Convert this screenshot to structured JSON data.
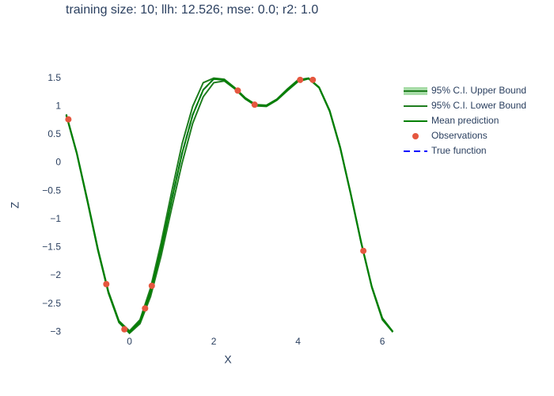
{
  "chart_data": {
    "type": "line",
    "title": "training size: 10; llh: 12.526; mse: 0.0; r2: 1.0",
    "x_label": "X",
    "y_label": "Z",
    "xlim": [
      -1.57,
      6.28
    ],
    "ylim": [
      -3.08,
      1.58
    ],
    "xticks": [
      0,
      2,
      4,
      6
    ],
    "yticks": [
      1.5,
      1,
      0.5,
      0,
      {
        "value": -0.5,
        "label": "−0.5"
      },
      {
        "value": -1,
        "label": "−1"
      },
      {
        "value": -1.5,
        "label": "−1.5"
      },
      {
        "value": -2,
        "label": "−2"
      },
      {
        "value": -2.5,
        "label": "−2.5"
      },
      {
        "value": -3,
        "label": "−3"
      }
    ],
    "x": [
      -1.5,
      -1.25,
      -1.0,
      -0.75,
      -0.5,
      -0.25,
      0,
      0.25,
      0.5,
      0.75,
      1.0,
      1.25,
      1.5,
      1.75,
      2.0,
      2.25,
      2.5,
      2.75,
      3.0,
      3.25,
      3.5,
      3.75,
      4.0,
      4.25,
      4.5,
      4.75,
      5.0,
      5.25,
      5.5,
      5.75,
      6.0,
      6.25
    ],
    "series": [
      {
        "name": "95% C.I. Upper Bound",
        "color": "#1e7d1e",
        "kind": "line",
        "values": [
          0.86,
          0.18,
          -0.65,
          -1.52,
          -2.28,
          -2.8,
          -2.98,
          -2.78,
          -2.22,
          -1.42,
          -0.52,
          0.34,
          1.0,
          1.42,
          1.5,
          1.48,
          1.33,
          1.15,
          1.03,
          1.02,
          1.13,
          1.31,
          1.47,
          1.5,
          1.34,
          0.93,
          0.28,
          -0.54,
          -1.41,
          -2.19,
          -2.75,
          -2.99
        ]
      },
      {
        "name": "95% C.I. Lower Bound",
        "color": "#1e7d1e",
        "kind": "line",
        "values": [
          0.84,
          0.16,
          -0.68,
          -1.55,
          -2.31,
          -2.83,
          -3.02,
          -2.85,
          -2.37,
          -1.65,
          -0.81,
          0.0,
          0.7,
          1.17,
          1.42,
          1.45,
          1.31,
          1.13,
          1.01,
          1.0,
          1.11,
          1.28,
          1.44,
          1.49,
          1.33,
          0.91,
          0.26,
          -0.56,
          -1.43,
          -2.21,
          -2.78,
          -3.0
        ]
      },
      {
        "name": "Mean prediction",
        "color": "#008000",
        "kind": "line",
        "values": [
          0.849,
          0.17,
          -0.665,
          -1.534,
          -2.295,
          -2.815,
          -3,
          -2.815,
          -2.295,
          -1.534,
          -0.665,
          0.17,
          0.849,
          1.293,
          1.486,
          1.467,
          1.319,
          1.14,
          1.02,
          1.011,
          1.119,
          1.295,
          1.453,
          1.494,
          1.333,
          0.922,
          0.272,
          -0.549,
          -1.422,
          -2.198,
          -2.764,
          -2.997
        ]
      },
      {
        "name": "Observations",
        "color": "#e5573f",
        "kind": "scatter",
        "x": [
          -1.45,
          -0.55,
          -0.12,
          0.37,
          0.53,
          2.57,
          2.97,
          4.05,
          4.35,
          5.55
        ],
        "values": [
          0.77,
          -2.15,
          -2.95,
          -2.58,
          -2.18,
          1.28,
          1.03,
          1.47,
          1.47,
          -1.56
        ]
      },
      {
        "name": "True function",
        "color": "#0000ff",
        "kind": "dash",
        "values": [
          0.849,
          0.17,
          -0.665,
          -1.534,
          -2.295,
          -2.815,
          -3,
          -2.815,
          -2.295,
          -1.534,
          -0.665,
          0.17,
          0.849,
          1.293,
          1.486,
          1.467,
          1.319,
          1.14,
          1.02,
          1.011,
          1.119,
          1.295,
          1.453,
          1.494,
          1.333,
          0.922,
          0.272,
          -0.549,
          -1.422,
          -2.198,
          -2.764,
          -2.997
        ]
      }
    ]
  }
}
